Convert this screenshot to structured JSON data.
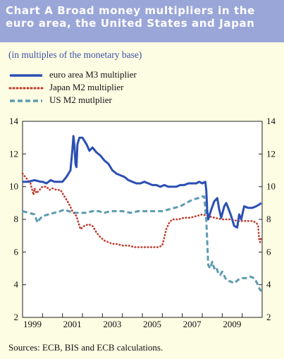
{
  "title": "Chart A Broad money multipliers in the euro area, the United States and Japan",
  "subtitle": "(in multiples of the monetary base)",
  "source": "Sources: ECB, BIS and ECB calculations.",
  "chart_data": {
    "type": "line",
    "title": "Chart A Broad money multipliers in the euro area, the United States and Japan",
    "subtitle": "(in multiples of the monetary base)",
    "xlabel": "",
    "ylabel": "",
    "xlim": [
      1999.0,
      2011.0
    ],
    "ylim": [
      2,
      14
    ],
    "yticks": [
      2,
      4,
      6,
      8,
      10,
      12,
      14
    ],
    "xtick_labels": [
      "1999",
      "2001",
      "2003",
      "2005",
      "2007",
      "2009"
    ],
    "grid": false,
    "legend_position": "top-left",
    "series": [
      {
        "name": "euro area M3 multiplier",
        "color": "#2b4fb3",
        "style": "solid",
        "x": [
          1999.0,
          1999.3,
          1999.6,
          1999.9,
          2000.0,
          2000.2,
          2000.4,
          2000.6,
          2000.8,
          2001.0,
          2001.2,
          2001.4,
          2001.5,
          2001.55,
          2001.6,
          2001.65,
          2001.7,
          2001.75,
          2001.85,
          2002.0,
          2002.2,
          2002.35,
          2002.5,
          2002.7,
          2002.9,
          2003.1,
          2003.3,
          2003.5,
          2003.7,
          2003.9,
          2004.1,
          2004.3,
          2004.5,
          2004.7,
          2004.9,
          2005.1,
          2005.3,
          2005.5,
          2005.7,
          2005.9,
          2006.1,
          2006.3,
          2006.5,
          2006.7,
          2006.9,
          2007.1,
          2007.3,
          2007.5,
          2007.7,
          2007.85,
          2008.0,
          2008.15,
          2008.2,
          2008.25,
          2008.3,
          2008.35,
          2008.45,
          2008.6,
          2008.75,
          2008.85,
          2008.95,
          2009.1,
          2009.2,
          2009.3,
          2009.45,
          2009.6,
          2009.75,
          2009.85,
          2009.95,
          2010.1,
          2010.3,
          2010.5,
          2010.7,
          2010.85,
          2010.95
        ],
        "y": [
          10.3,
          10.3,
          10.4,
          10.3,
          10.3,
          10.2,
          10.4,
          10.3,
          10.3,
          10.3,
          10.6,
          11.0,
          12.3,
          13.1,
          12.5,
          11.4,
          11.2,
          12.6,
          13.0,
          13.0,
          12.6,
          12.2,
          12.4,
          12.1,
          11.9,
          11.6,
          11.4,
          11.0,
          10.8,
          10.7,
          10.6,
          10.4,
          10.3,
          10.2,
          10.2,
          10.3,
          10.2,
          10.1,
          10.1,
          10.0,
          10.1,
          10.0,
          10.0,
          10.0,
          10.1,
          10.1,
          10.2,
          10.2,
          10.2,
          10.3,
          10.2,
          10.3,
          9.8,
          8.5,
          8.0,
          8.2,
          8.6,
          9.1,
          9.3,
          8.6,
          8.1,
          8.8,
          9.0,
          8.7,
          8.2,
          7.6,
          7.5,
          8.3,
          8.0,
          8.8,
          8.7,
          8.7,
          8.8,
          8.9,
          9.0
        ]
      },
      {
        "name": "Japan M2 multiplier",
        "color": "#c0392b",
        "style": "dotted",
        "x": [
          1999.0,
          1999.2,
          1999.4,
          1999.55,
          1999.6,
          1999.7,
          1999.85,
          2000.0,
          2000.2,
          2000.35,
          2000.5,
          2000.7,
          2000.9,
          2001.1,
          2001.3,
          2001.5,
          2001.7,
          2001.8,
          2001.9,
          2002.1,
          2002.3,
          2002.5,
          2002.7,
          2002.9,
          2003.1,
          2003.3,
          2003.5,
          2003.7,
          2004.0,
          2004.3,
          2004.6,
          2004.9,
          2005.2,
          2005.5,
          2005.8,
          2006.0,
          2006.1,
          2006.2,
          2006.35,
          2006.5,
          2006.8,
          2007.1,
          2007.4,
          2007.7,
          2008.0,
          2008.3,
          2008.6,
          2009.0,
          2009.4,
          2009.8,
          2010.2,
          2010.5,
          2010.7,
          2010.8,
          2010.85,
          2010.9,
          2010.95
        ],
        "y": [
          10.8,
          10.5,
          10.2,
          9.5,
          9.9,
          9.6,
          9.8,
          10.0,
          10.0,
          9.8,
          9.9,
          9.8,
          9.8,
          9.4,
          9.0,
          8.5,
          8.2,
          7.8,
          7.4,
          7.6,
          7.7,
          7.6,
          7.2,
          6.9,
          6.7,
          6.6,
          6.5,
          6.5,
          6.4,
          6.4,
          6.3,
          6.3,
          6.3,
          6.3,
          6.3,
          6.4,
          6.9,
          7.4,
          7.8,
          8.0,
          8.0,
          8.1,
          8.1,
          8.2,
          8.3,
          8.2,
          8.1,
          8.0,
          8.0,
          7.9,
          7.9,
          7.9,
          7.8,
          7.6,
          6.8,
          6.6,
          6.9
        ]
      },
      {
        "name": "US M2 mutlplier",
        "color": "#5b9bb0",
        "style": "dashed",
        "x": [
          1999.0,
          1999.3,
          1999.6,
          1999.75,
          1999.85,
          2000.0,
          2000.3,
          2000.6,
          2000.9,
          2001.1,
          2001.3,
          2001.6,
          2001.9,
          2002.2,
          2002.5,
          2002.8,
          2003.1,
          2003.4,
          2003.7,
          2004.0,
          2004.4,
          2004.8,
          2005.2,
          2005.6,
          2006.0,
          2006.3,
          2006.6,
          2006.9,
          2007.2,
          2007.5,
          2007.8,
          2007.95,
          2008.1,
          2008.2,
          2008.3,
          2008.4,
          2008.5,
          2008.6,
          2008.7,
          2008.8,
          2008.9,
          2009.0,
          2009.2,
          2009.4,
          2009.6,
          2009.8,
          2010.0,
          2010.2,
          2010.4,
          2010.6,
          2010.75,
          2010.85,
          2010.95
        ],
        "y": [
          8.5,
          8.4,
          8.3,
          7.8,
          8.0,
          8.2,
          8.3,
          8.4,
          8.5,
          8.6,
          8.5,
          8.4,
          8.4,
          8.4,
          8.5,
          8.5,
          8.4,
          8.5,
          8.5,
          8.5,
          8.4,
          8.5,
          8.5,
          8.5,
          8.5,
          8.6,
          8.7,
          8.8,
          9.0,
          9.2,
          9.3,
          9.4,
          9.4,
          8.0,
          5.2,
          5.0,
          5.4,
          5.0,
          5.1,
          4.7,
          4.6,
          4.8,
          4.3,
          4.2,
          4.1,
          4.3,
          4.4,
          4.4,
          4.5,
          4.4,
          4.1,
          3.8,
          3.6
        ]
      }
    ]
  }
}
